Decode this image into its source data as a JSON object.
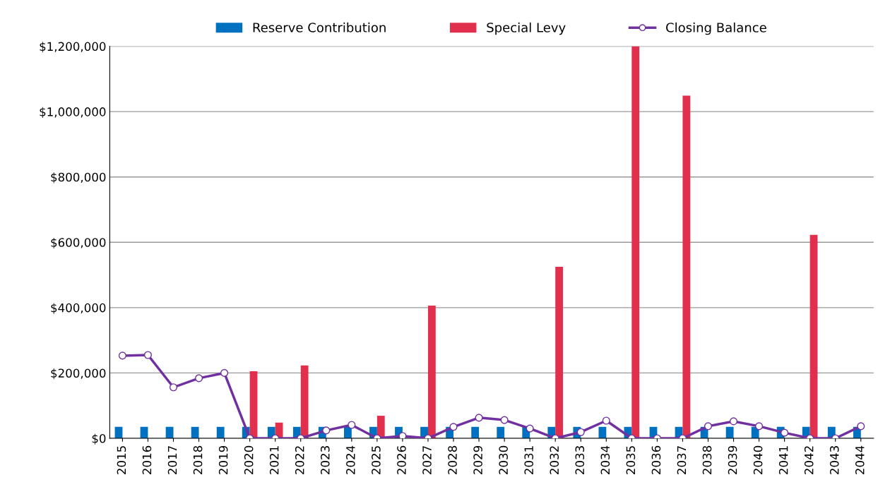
{
  "chart_data": {
    "type": "bar",
    "categories": [
      "2015",
      "2016",
      "2017",
      "2018",
      "2019",
      "2020",
      "2021",
      "2022",
      "2023",
      "2024",
      "2025",
      "2026",
      "2027",
      "2028",
      "2029",
      "2030",
      "2031",
      "2032",
      "2033",
      "2034",
      "2035",
      "2036",
      "2037",
      "2038",
      "2039",
      "2040",
      "2041",
      "2042",
      "2043",
      "2044"
    ],
    "series": [
      {
        "name": "Reserve Contribution",
        "color": "#0070c0",
        "values": [
          35000,
          35000,
          35000,
          35000,
          35000,
          35000,
          35000,
          35000,
          35000,
          35000,
          35000,
          35000,
          35000,
          35000,
          35000,
          35000,
          35000,
          35000,
          35000,
          35000,
          35000,
          35000,
          35000,
          35000,
          35000,
          35000,
          35000,
          35000,
          35000,
          35000
        ]
      },
      {
        "name": "Special Levy",
        "color": "#e0304e",
        "values": [
          0,
          0,
          0,
          0,
          0,
          205000,
          48000,
          223000,
          0,
          0,
          69000,
          0,
          406000,
          0,
          0,
          0,
          0,
          525000,
          0,
          0,
          1200000,
          0,
          1049000,
          0,
          0,
          0,
          0,
          623000,
          0,
          0
        ]
      },
      {
        "name": "Closing Balance",
        "type": "line",
        "color": "#7030a0",
        "marker": "circle",
        "values": [
          253000,
          255000,
          156000,
          184000,
          200000,
          0,
          0,
          0,
          24000,
          41000,
          0,
          7000,
          0,
          35000,
          63000,
          56000,
          30000,
          0,
          19000,
          54000,
          0,
          0,
          0,
          37000,
          52000,
          37000,
          17000,
          0,
          0,
          37000
        ]
      }
    ],
    "ylim": [
      0,
      1200000
    ],
    "yticks": [
      {
        "value": 0,
        "label": "$0"
      },
      {
        "value": 200000,
        "label": "$200,000"
      },
      {
        "value": 400000,
        "label": "$400,000"
      },
      {
        "value": 600000,
        "label": "$600,000"
      },
      {
        "value": 800000,
        "label": "$800,000"
      },
      {
        "value": 1000000,
        "label": "$1,000,000"
      },
      {
        "value": 1200000,
        "label": "$1,200,000"
      }
    ],
    "grid": "y",
    "legend": "top"
  }
}
